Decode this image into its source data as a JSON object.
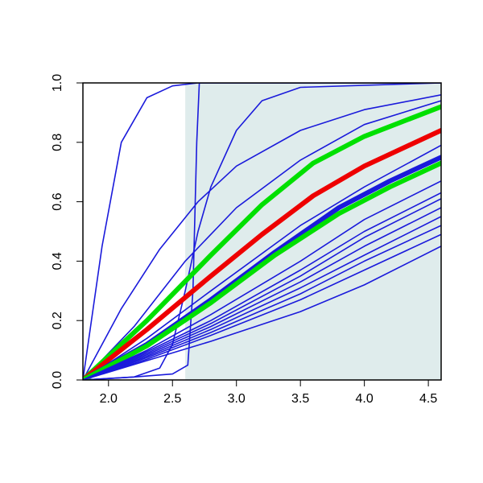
{
  "chart_data": {
    "type": "line",
    "title": "",
    "xlabel": "",
    "ylabel": "",
    "xlim": [
      1.8,
      4.6
    ],
    "ylim": [
      0.0,
      1.0
    ],
    "grid": false,
    "x_ticks": [
      "2.0",
      "2.5",
      "3.0",
      "3.5",
      "4.0",
      "4.5"
    ],
    "y_ticks": [
      "0.0",
      "0.2",
      "0.4",
      "0.6",
      "0.8",
      "1.0"
    ],
    "shaded_region": {
      "x_from": 2.6,
      "x_to": 4.6,
      "color": "#dfecec"
    },
    "colors": {
      "blue": "#1a1adb",
      "green": "#00e000",
      "red": "#ee0000"
    },
    "series": [
      {
        "color": "blue",
        "points": [
          [
            1.8,
            0
          ],
          [
            1.95,
            0.45
          ],
          [
            2.1,
            0.8
          ],
          [
            2.3,
            0.95
          ],
          [
            2.5,
            0.99
          ],
          [
            2.7,
            1.0
          ],
          [
            4.6,
            1.0
          ]
        ]
      },
      {
        "color": "blue",
        "points": [
          [
            1.8,
            0
          ],
          [
            2.2,
            0.01
          ],
          [
            2.5,
            0.02
          ],
          [
            2.62,
            0.05
          ],
          [
            2.66,
            0.3
          ],
          [
            2.69,
            0.8
          ],
          [
            2.71,
            1.0
          ],
          [
            4.6,
            1.0
          ]
        ]
      },
      {
        "color": "blue",
        "points": [
          [
            1.8,
            0
          ],
          [
            2.0,
            0.005
          ],
          [
            2.2,
            0.01
          ],
          [
            2.4,
            0.04
          ],
          [
            2.5,
            0.12
          ],
          [
            2.6,
            0.3
          ],
          [
            2.7,
            0.5
          ],
          [
            2.8,
            0.65
          ],
          [
            3.0,
            0.84
          ],
          [
            3.2,
            0.94
          ],
          [
            3.5,
            0.985
          ],
          [
            4.6,
            1.0
          ]
        ]
      },
      {
        "color": "blue",
        "points": [
          [
            1.8,
            0
          ],
          [
            2.1,
            0.24
          ],
          [
            2.4,
            0.44
          ],
          [
            2.7,
            0.6
          ],
          [
            3.0,
            0.72
          ],
          [
            3.5,
            0.84
          ],
          [
            4.0,
            0.91
          ],
          [
            4.6,
            0.96
          ]
        ]
      },
      {
        "color": "blue",
        "points": [
          [
            1.8,
            0
          ],
          [
            2.2,
            0.18
          ],
          [
            2.6,
            0.4
          ],
          [
            3.0,
            0.58
          ],
          [
            3.5,
            0.74
          ],
          [
            4.0,
            0.86
          ],
          [
            4.6,
            0.94
          ]
        ]
      },
      {
        "color": "green",
        "bold": true,
        "points": [
          [
            1.8,
            0
          ],
          [
            2.3,
            0.2
          ],
          [
            2.8,
            0.42
          ],
          [
            3.2,
            0.59
          ],
          [
            3.6,
            0.73
          ],
          [
            4.0,
            0.82
          ],
          [
            4.6,
            0.92
          ]
        ]
      },
      {
        "color": "red",
        "bold": true,
        "points": [
          [
            1.8,
            0
          ],
          [
            2.3,
            0.17
          ],
          [
            2.8,
            0.35
          ],
          [
            3.2,
            0.49
          ],
          [
            3.6,
            0.62
          ],
          [
            4.0,
            0.72
          ],
          [
            4.6,
            0.84
          ]
        ]
      },
      {
        "color": "blue",
        "points": [
          [
            1.8,
            0
          ],
          [
            2.3,
            0.14
          ],
          [
            2.8,
            0.3
          ],
          [
            3.5,
            0.52
          ],
          [
            4.0,
            0.65
          ],
          [
            4.6,
            0.79
          ]
        ]
      },
      {
        "color": "blue",
        "bold": true,
        "points": [
          [
            1.8,
            0
          ],
          [
            2.3,
            0.12
          ],
          [
            2.8,
            0.27
          ],
          [
            3.3,
            0.43
          ],
          [
            3.8,
            0.58
          ],
          [
            4.2,
            0.67
          ],
          [
            4.6,
            0.75
          ]
        ]
      },
      {
        "color": "green",
        "bold": true,
        "points": [
          [
            1.8,
            0
          ],
          [
            2.3,
            0.115
          ],
          [
            2.8,
            0.26
          ],
          [
            3.3,
            0.42
          ],
          [
            3.8,
            0.56
          ],
          [
            4.2,
            0.65
          ],
          [
            4.6,
            0.73
          ]
        ]
      },
      {
        "color": "blue",
        "points": [
          [
            1.8,
            0
          ],
          [
            2.3,
            0.1
          ],
          [
            2.8,
            0.22
          ],
          [
            3.5,
            0.4
          ],
          [
            4.0,
            0.54
          ],
          [
            4.6,
            0.67
          ]
        ]
      },
      {
        "color": "blue",
        "points": [
          [
            1.8,
            0
          ],
          [
            2.3,
            0.095
          ],
          [
            2.8,
            0.2
          ],
          [
            3.5,
            0.37
          ],
          [
            4.0,
            0.5
          ],
          [
            4.6,
            0.63
          ]
        ]
      },
      {
        "color": "blue",
        "points": [
          [
            1.8,
            0
          ],
          [
            2.3,
            0.09
          ],
          [
            2.8,
            0.19
          ],
          [
            3.5,
            0.35
          ],
          [
            4.0,
            0.48
          ],
          [
            4.6,
            0.61
          ]
        ]
      },
      {
        "color": "blue",
        "points": [
          [
            1.8,
            0
          ],
          [
            2.3,
            0.085
          ],
          [
            2.8,
            0.18
          ],
          [
            3.5,
            0.33
          ],
          [
            4.0,
            0.45
          ],
          [
            4.6,
            0.58
          ]
        ]
      },
      {
        "color": "blue",
        "points": [
          [
            1.8,
            0
          ],
          [
            2.3,
            0.08
          ],
          [
            2.8,
            0.17
          ],
          [
            3.5,
            0.31
          ],
          [
            4.0,
            0.42
          ],
          [
            4.6,
            0.55
          ]
        ]
      },
      {
        "color": "blue",
        "points": [
          [
            1.8,
            0
          ],
          [
            2.3,
            0.075
          ],
          [
            2.8,
            0.16
          ],
          [
            3.5,
            0.29
          ],
          [
            4.0,
            0.4
          ],
          [
            4.6,
            0.52
          ]
        ]
      },
      {
        "color": "blue",
        "points": [
          [
            1.8,
            0
          ],
          [
            2.3,
            0.07
          ],
          [
            2.8,
            0.15
          ],
          [
            3.5,
            0.27
          ],
          [
            4.0,
            0.37
          ],
          [
            4.6,
            0.49
          ]
        ]
      },
      {
        "color": "blue",
        "points": [
          [
            1.8,
            0
          ],
          [
            2.3,
            0.065
          ],
          [
            2.8,
            0.13
          ],
          [
            3.5,
            0.23
          ],
          [
            4.0,
            0.32
          ],
          [
            4.6,
            0.45
          ]
        ]
      }
    ]
  }
}
